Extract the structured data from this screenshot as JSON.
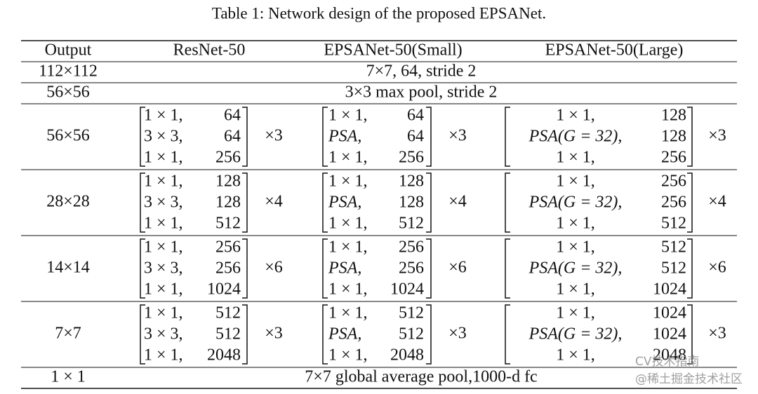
{
  "caption": "Table 1: Network design of the proposed EPSANet.",
  "table": {
    "header": [
      "Output",
      "ResNet-50",
      "EPSANet-50(Small)",
      "EPSANet-50(Large)"
    ],
    "rows": [
      {
        "output": "112×112",
        "span": "7×7, 64, stride 2"
      },
      {
        "output": "56×56",
        "span": "3×3 max pool, stride 2"
      },
      {
        "output": "56×56",
        "blocks": [
          {
            "lines": [
              [
                "1 × 1,",
                "64"
              ],
              [
                "3 × 3,",
                "64"
              ],
              [
                "1 × 1,",
                "256"
              ]
            ],
            "repeat": "×3"
          },
          {
            "lines": [
              [
                "1 × 1,",
                "64"
              ],
              [
                "PSA,",
                "64"
              ],
              [
                "1 × 1,",
                "256"
              ]
            ],
            "repeat": "×3"
          },
          {
            "lines": [
              [
                "1 × 1,",
                "128"
              ],
              [
                "PSA(G = 32),",
                "128"
              ],
              [
                "1 × 1,",
                "256"
              ]
            ],
            "repeat": "×3"
          }
        ]
      },
      {
        "output": "28×28",
        "blocks": [
          {
            "lines": [
              [
                "1 × 1,",
                "128"
              ],
              [
                "3 × 3,",
                "128"
              ],
              [
                "1 × 1,",
                "512"
              ]
            ],
            "repeat": "×4"
          },
          {
            "lines": [
              [
                "1 × 1,",
                "128"
              ],
              [
                "PSA,",
                "128"
              ],
              [
                "1 × 1,",
                "512"
              ]
            ],
            "repeat": "×4"
          },
          {
            "lines": [
              [
                "1 × 1,",
                "256"
              ],
              [
                "PSA(G = 32),",
                "256"
              ],
              [
                "1 × 1,",
                "512"
              ]
            ],
            "repeat": "×4"
          }
        ]
      },
      {
        "output": "14×14",
        "blocks": [
          {
            "lines": [
              [
                "1 × 1,",
                "256"
              ],
              [
                "3 × 3,",
                "256"
              ],
              [
                "1 × 1,",
                "1024"
              ]
            ],
            "repeat": "×6"
          },
          {
            "lines": [
              [
                "1 × 1,",
                "256"
              ],
              [
                "PSA,",
                "256"
              ],
              [
                "1 × 1,",
                "1024"
              ]
            ],
            "repeat": "×6"
          },
          {
            "lines": [
              [
                "1 × 1,",
                "512"
              ],
              [
                "PSA(G = 32),",
                "512"
              ],
              [
                "1 × 1,",
                "1024"
              ]
            ],
            "repeat": "×6"
          }
        ]
      },
      {
        "output": "7×7",
        "blocks": [
          {
            "lines": [
              [
                "1 × 1,",
                "512"
              ],
              [
                "3 × 3,",
                "512"
              ],
              [
                "1 × 1,",
                "2048"
              ]
            ],
            "repeat": "×3"
          },
          {
            "lines": [
              [
                "1 × 1,",
                "512"
              ],
              [
                "PSA,",
                "512"
              ],
              [
                "1 × 1,",
                "2048"
              ]
            ],
            "repeat": "×3"
          },
          {
            "lines": [
              [
                "1 × 1,",
                "1024"
              ],
              [
                "PSA(G = 32),",
                "1024"
              ],
              [
                "1 × 1,",
                "2048"
              ]
            ],
            "repeat": "×3"
          }
        ]
      },
      {
        "output": "1 × 1",
        "span": "7×7 global average pool,1000-d fc"
      }
    ]
  },
  "watermark": [
    "CV技术指南",
    "@稀土掘金技术社区"
  ]
}
